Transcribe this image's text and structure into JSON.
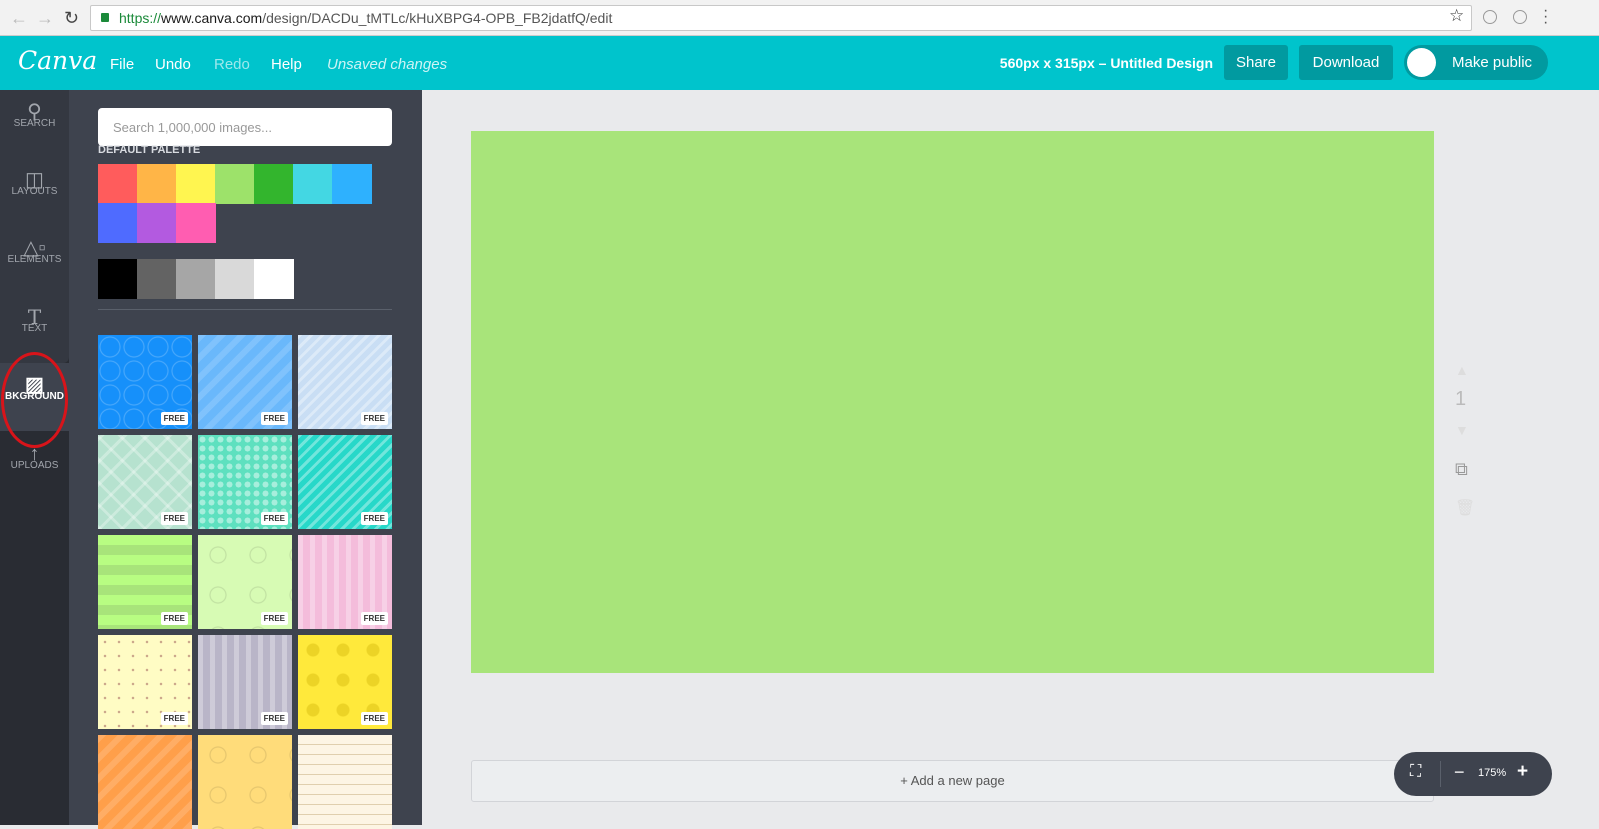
{
  "browser": {
    "url_scheme": "https://",
    "url_host": "www.canva.com",
    "url_path": "/design/DACDu_tMTLc/kHuXBPG4-OPB_FB2jdatfQ/edit"
  },
  "header": {
    "logo": "Canva",
    "menu": [
      "File",
      "Undo",
      "Redo",
      "Help"
    ],
    "status": "Unsaved changes",
    "design_title": "560px x 315px – Untitled Design",
    "share": "Share",
    "download": "Download",
    "make_public": "Make public",
    "brand_color": "#00c4cc"
  },
  "rail": {
    "items": [
      "SEARCH",
      "LAYOUTS",
      "ELEMENTS",
      "TEXT",
      "BKGROUND",
      "UPLOADS"
    ],
    "active": "BKGROUND"
  },
  "panel": {
    "search_placeholder": "Search 1,000,000 images...",
    "palette_label": "DEFAULT PALETTE",
    "palette": [
      "#ff5c5c",
      "#ffb547",
      "#fff550",
      "#9de26a",
      "#33b52d",
      "#43d7e3",
      "#2eb1fe",
      "#4f6bff",
      "#b35ae0",
      "#ff5db1"
    ],
    "grays": [
      "#000000",
      "#636363",
      "#a6a6a6",
      "#d9d9d9",
      "#ffffff"
    ],
    "free_label": "FREE",
    "backgrounds": [
      {
        "color": "#1690fa",
        "pattern": "hexagons",
        "free": true
      },
      {
        "color": "#6ab8fb",
        "pattern": "chevrons",
        "free": true
      },
      {
        "color": "#c9def4",
        "pattern": "diagonal-stripes",
        "free": true
      },
      {
        "color": "#b6e2cf",
        "pattern": "diamonds",
        "free": true
      },
      {
        "color": "#5ee0bf",
        "pattern": "dots-grid",
        "free": true
      },
      {
        "color": "#27d8c9",
        "pattern": "diagonal-stripes",
        "free": true
      },
      {
        "color": "#a8e47a",
        "pattern": "horizontal-stripes",
        "free": true
      },
      {
        "color": "#d7fbb4",
        "pattern": "circles",
        "free": true
      },
      {
        "color": "#f4bcdb",
        "pattern": "vertical-stripes",
        "free": true
      },
      {
        "color": "#fffcc4",
        "pattern": "dots",
        "free": true
      },
      {
        "color": "#b9b5c8",
        "pattern": "vertical-stripes",
        "free": true
      },
      {
        "color": "#ffe93b",
        "pattern": "lemons",
        "free": true
      },
      {
        "color": "#ff9f4a",
        "pattern": "chevrons",
        "free": false
      },
      {
        "color": "#ffdc7a",
        "pattern": "circles",
        "free": false
      },
      {
        "color": "#fdf5e4",
        "pattern": "horizontal-lines",
        "free": false
      }
    ]
  },
  "canvas": {
    "background": "green horizontal stripes",
    "page_number": "1",
    "add_page": "+ Add a new page"
  },
  "zoom": {
    "level": "175%"
  }
}
